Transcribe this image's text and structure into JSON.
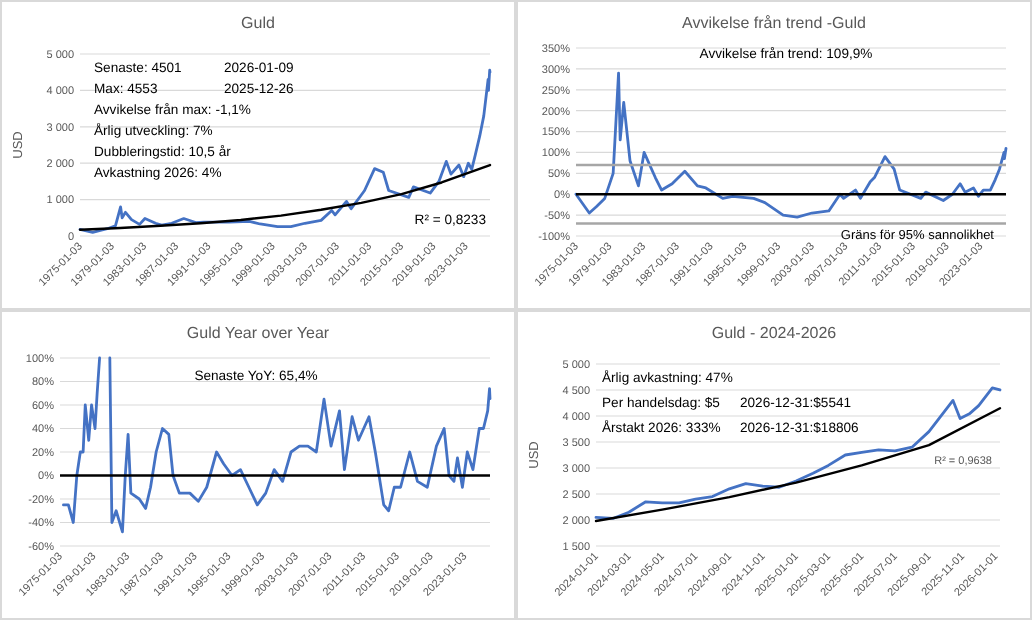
{
  "chart_data": [
    {
      "type": "line",
      "title": "Guld",
      "ylabel": "USD",
      "xlim": [
        "1975-01-03",
        "2026-01-09"
      ],
      "xticks": [
        "1975-01-03",
        "1979-01-03",
        "1983-01-03",
        "1987-01-03",
        "1991-01-03",
        "1995-01-03",
        "1999-01-03",
        "2003-01-03",
        "2007-01-03",
        "2011-01-03",
        "2015-01-03",
        "2019-01-03",
        "2023-01-03"
      ],
      "ylim": [
        0,
        5000
      ],
      "yticks": [
        0,
        {
          "value": 1000,
          "label": "1 000"
        },
        {
          "value": 2000,
          "label": "2 000"
        },
        {
          "value": 3000,
          "label": "3 000"
        },
        {
          "value": 4000,
          "label": "4 000"
        },
        {
          "value": 5000,
          "label": "5 000"
        }
      ],
      "grid": "y",
      "annotations": [
        "Senaste: 4501",
        "2026-01-09",
        "Max: 4553",
        "2025-12-26",
        "Avvikelse från max: -1,1%",
        "Årlig utveckling: 7%",
        "Dubbleringstid: 10,5 år",
        "Avkastning 2026: 4%",
        "R² = 0,8233"
      ],
      "series": [
        {
          "color": "#4472c4",
          "x": [
            "1975-01-03",
            "1976-08-01",
            "1977-06-01",
            "1978-06-01",
            "1979-06-01",
            "1980-01-21",
            "1980-04-01",
            "1980-09-01",
            "1981-06-01",
            "1982-06-01",
            "1983-02-01",
            "1984-06-01",
            "1985-03-01",
            "1986-06-01",
            "1987-12-01",
            "1989-06-01",
            "1990-06-01",
            "1993-08-01",
            "1996-02-01",
            "1997-06-01",
            "1999-08-01",
            "2001-04-01",
            "2003-01-01",
            "2005-01-01",
            "2006-05-01",
            "2006-10-01",
            "2008-03-01",
            "2008-10-01",
            "2009-12-01",
            "2010-06-01",
            "2011-09-01",
            "2012-10-01",
            "2013-06-01",
            "2015-12-01",
            "2016-07-01",
            "2018-08-01",
            "2019-09-01",
            "2020-08-01",
            "2021-03-01",
            "2022-03-01",
            "2022-10-01",
            "2023-05-01",
            "2023-10-01",
            "2024-03-01",
            "2024-10-01",
            "2025-04-01",
            "2025-10-15",
            "2025-11-01",
            "2025-12-26",
            "2026-01-09"
          ],
          "values": [
            180,
            100,
            150,
            200,
            280,
            800,
            500,
            650,
            450,
            320,
            480,
            350,
            300,
            350,
            480,
            370,
            380,
            380,
            400,
            330,
            255,
            260,
            350,
            430,
            700,
            580,
            950,
            750,
            1100,
            1250,
            1850,
            1750,
            1250,
            1060,
            1350,
            1180,
            1500,
            2050,
            1700,
            1950,
            1630,
            2000,
            1830,
            2200,
            2750,
            3300,
            4300,
            4000,
            4553,
            4501
          ]
        },
        {
          "color": "#000000",
          "x": [
            "1975-01-03",
            "1980-01-03",
            "1985-01-03",
            "1990-01-03",
            "1995-01-03",
            "2000-01-03",
            "2005-01-03",
            "2010-01-03",
            "2015-01-03",
            "2020-01-03",
            "2026-01-09"
          ],
          "values": [
            170,
            220,
            280,
            350,
            440,
            560,
            720,
            910,
            1150,
            1470,
            1950
          ]
        }
      ]
    },
    {
      "type": "line",
      "title": "Avvikelse från trend -Guld",
      "xlim": [
        "1975-01-03",
        "2026-01-09"
      ],
      "xticks": [
        "1975-01-03",
        "1979-01-03",
        "1983-01-03",
        "1987-01-03",
        "1991-01-03",
        "1995-01-03",
        "1999-01-03",
        "2003-01-03",
        "2007-01-03",
        "2011-01-03",
        "2015-01-03",
        "2019-01-03",
        "2023-01-03"
      ],
      "ylim": [
        -100,
        350
      ],
      "yticks": [
        {
          "value": -100,
          "label": "-100%"
        },
        {
          "value": -50,
          "label": "-50%"
        },
        {
          "value": 0,
          "label": "0%"
        },
        {
          "value": 50,
          "label": "50%"
        },
        {
          "value": 100,
          "label": "100%"
        },
        {
          "value": 150,
          "label": "150%"
        },
        {
          "value": 200,
          "label": "200%"
        },
        {
          "value": 250,
          "label": "250%"
        },
        {
          "value": 300,
          "label": "300%"
        },
        {
          "value": 350,
          "label": "350%"
        }
      ],
      "grid": "y",
      "annotations": [
        "Avvikelse från trend: 109,9%"
      ],
      "ref_lines": [
        {
          "axis": "y",
          "value": 0,
          "color": "#000000"
        },
        {
          "axis": "y",
          "value": 70,
          "color": "#a6a6a6"
        },
        {
          "axis": "y",
          "value": -70,
          "color": "#a6a6a6",
          "label": "Gräns för 95% sannolikhet"
        }
      ],
      "series": [
        {
          "color": "#4472c4",
          "x": [
            "1975-01-03",
            "1976-08-01",
            "1977-06-01",
            "1978-06-01",
            "1979-06-01",
            "1980-01-21",
            "1980-04-01",
            "1980-09-01",
            "1981-06-01",
            "1982-06-01",
            "1983-02-01",
            "1984-06-01",
            "1985-03-01",
            "1986-06-01",
            "1987-12-01",
            "1989-06-01",
            "1990-06-01",
            "1992-06-01",
            "1993-08-01",
            "1996-02-01",
            "1997-06-01",
            "1999-08-01",
            "2001-04-01",
            "2003-01-01",
            "2005-01-01",
            "2006-05-01",
            "2006-10-01",
            "2008-03-01",
            "2008-10-01",
            "2009-12-01",
            "2010-06-01",
            "2011-09-01",
            "2012-10-01",
            "2013-06-01",
            "2015-12-01",
            "2016-07-01",
            "2018-08-01",
            "2019-09-01",
            "2020-08-01",
            "2021-03-01",
            "2022-03-01",
            "2022-10-01",
            "2023-05-01",
            "2024-03-01",
            "2024-10-01",
            "2025-04-01",
            "2025-10-15",
            "2025-11-01",
            "2026-01-09"
          ],
          "values": [
            0,
            -45,
            -30,
            -10,
            50,
            290,
            130,
            220,
            80,
            20,
            100,
            40,
            10,
            25,
            55,
            20,
            15,
            -10,
            -5,
            -10,
            -20,
            -50,
            -55,
            -45,
            -40,
            0,
            -10,
            10,
            -10,
            30,
            40,
            90,
            60,
            10,
            -10,
            5,
            -15,
            0,
            25,
            5,
            15,
            -5,
            10,
            10,
            35,
            60,
            100,
            85,
            109.9
          ]
        }
      ]
    },
    {
      "type": "line",
      "title": "Guld Year over Year",
      "xlim": [
        "1975-01-03",
        "2026-01-09"
      ],
      "xticks": [
        "1975-01-03",
        "1979-01-03",
        "1983-01-03",
        "1987-01-03",
        "1991-01-03",
        "1995-01-03",
        "1999-01-03",
        "2003-01-03",
        "2007-01-03",
        "2011-01-03",
        "2015-01-03",
        "2019-01-03",
        "2023-01-03"
      ],
      "ylim": [
        -60,
        100
      ],
      "yticks": [
        {
          "value": -60,
          "label": "-60%"
        },
        {
          "value": -40,
          "label": "-40%"
        },
        {
          "value": -20,
          "label": "-20%"
        },
        {
          "value": 0,
          "label": "0%"
        },
        {
          "value": 20,
          "label": "20%"
        },
        {
          "value": 40,
          "label": "40%"
        },
        {
          "value": 60,
          "label": "60%"
        },
        {
          "value": 80,
          "label": "80%"
        },
        {
          "value": 100,
          "label": "100%"
        }
      ],
      "grid": "y",
      "annotations": [
        "Senaste YoY: 65,4%"
      ],
      "ref_lines": [
        {
          "axis": "y",
          "value": 0,
          "color": "#000000"
        }
      ],
      "series": [
        {
          "color": "#4472c4",
          "x": [
            "1975-06-01",
            "1976-01-01",
            "1976-08-01",
            "1977-01-01",
            "1977-06-01",
            "1977-10-01",
            "1978-01-01",
            "1978-06-01",
            "1978-10-01",
            "1979-03-01",
            "1979-06-01",
            "1979-09-15",
            "1980-06-01",
            "1980-12-01",
            "1981-03-01",
            "1981-09-01",
            "1982-06-01",
            "1982-10-01",
            "1983-02-01",
            "1983-06-01",
            "1984-06-01",
            "1985-03-01",
            "1985-10-01",
            "1986-06-01",
            "1987-03-01",
            "1987-12-01",
            "1988-06-01",
            "1989-03-01",
            "1990-06-01",
            "1991-06-01",
            "1992-06-01",
            "1993-08-01",
            "1994-06-01",
            "1995-06-01",
            "1996-06-01",
            "1997-06-01",
            "1998-06-01",
            "1999-06-01",
            "2000-06-01",
            "2001-06-01",
            "2002-06-01",
            "2003-06-01",
            "2004-06-01",
            "2005-06-01",
            "2006-05-01",
            "2007-03-01",
            "2008-03-01",
            "2008-10-01",
            "2009-09-01",
            "2010-06-01",
            "2011-09-01",
            "2012-06-01",
            "2013-06-01",
            "2014-01-01",
            "2014-09-01",
            "2015-06-01",
            "2016-07-01",
            "2017-06-01",
            "2018-08-01",
            "2019-09-01",
            "2020-08-01",
            "2021-03-01",
            "2021-10-01",
            "2022-03-01",
            "2022-10-01",
            "2023-05-01",
            "2024-01-01",
            "2024-10-01",
            "2025-04-01",
            "2025-10-01",
            "2025-12-20",
            "2026-01-09"
          ],
          "values": [
            -25,
            -25,
            -40,
            0,
            20,
            20,
            60,
            30,
            60,
            40,
            70,
            100,
            null,
            100,
            -40,
            -30,
            -48,
            0,
            35,
            -15,
            -20,
            -28,
            -10,
            20,
            40,
            35,
            0,
            -15,
            -15,
            -22,
            -10,
            20,
            10,
            0,
            5,
            -10,
            -25,
            -15,
            5,
            -5,
            20,
            25,
            25,
            20,
            65,
            25,
            55,
            5,
            50,
            30,
            50,
            20,
            -25,
            -30,
            -10,
            -10,
            20,
            -5,
            -10,
            25,
            40,
            0,
            -5,
            15,
            -10,
            20,
            5,
            40,
            40,
            55,
            74,
            65.4
          ]
        }
      ]
    },
    {
      "type": "line",
      "title": "Guld - 2024-2026",
      "ylabel": "USD",
      "xlim": [
        "2024-01-01",
        "2026-01-09"
      ],
      "xticks": [
        "2024-01-01",
        "2024-03-01",
        "2024-05-01",
        "2024-07-01",
        "2024-09-01",
        "2024-11-01",
        "2025-01-01",
        "2025-03-01",
        "2025-05-01",
        "2025-07-01",
        "2025-09-01",
        "2025-11-01",
        "2026-01-01"
      ],
      "ylim": [
        1500,
        5000
      ],
      "yticks": [
        {
          "value": 1500,
          "label": "1 500"
        },
        {
          "value": 2000,
          "label": "2 000"
        },
        {
          "value": 2500,
          "label": "2 500"
        },
        {
          "value": 3000,
          "label": "3 000"
        },
        {
          "value": 3500,
          "label": "3 500"
        },
        {
          "value": 4000,
          "label": "4 000"
        },
        {
          "value": 4500,
          "label": "4 500"
        },
        {
          "value": 5000,
          "label": "5 000"
        }
      ],
      "grid": "y",
      "annotations": [
        "Årlig avkastning: 47%",
        "Per handelsdag: $5",
        "2026-12-31:$5541",
        "Årstakt 2026: 333%",
        "2026-12-31:$18806",
        "R² = 0,9638"
      ],
      "series": [
        {
          "color": "#4472c4",
          "x": [
            "2024-01-01",
            "2024-02-01",
            "2024-03-01",
            "2024-04-01",
            "2024-05-01",
            "2024-06-01",
            "2024-07-01",
            "2024-08-01",
            "2024-09-01",
            "2024-10-01",
            "2024-11-01",
            "2024-12-01",
            "2025-01-01",
            "2025-02-01",
            "2025-03-01",
            "2025-04-01",
            "2025-05-01",
            "2025-06-01",
            "2025-07-01",
            "2025-08-01",
            "2025-09-01",
            "2025-10-15",
            "2025-10-28",
            "2025-11-15",
            "2025-12-01",
            "2025-12-26",
            "2026-01-09"
          ],
          "values": [
            2050,
            2030,
            2150,
            2350,
            2330,
            2330,
            2400,
            2450,
            2600,
            2700,
            2650,
            2630,
            2750,
            2900,
            3050,
            3250,
            3300,
            3350,
            3330,
            3400,
            3700,
            4300,
            3950,
            4050,
            4200,
            4540,
            4501
          ]
        },
        {
          "color": "#000000",
          "x": [
            "2024-01-01",
            "2024-05-01",
            "2024-09-01",
            "2025-01-01",
            "2025-05-01",
            "2025-09-01",
            "2026-01-09"
          ],
          "values": [
            1980,
            2200,
            2440,
            2720,
            3050,
            3440,
            4150
          ]
        }
      ]
    }
  ]
}
